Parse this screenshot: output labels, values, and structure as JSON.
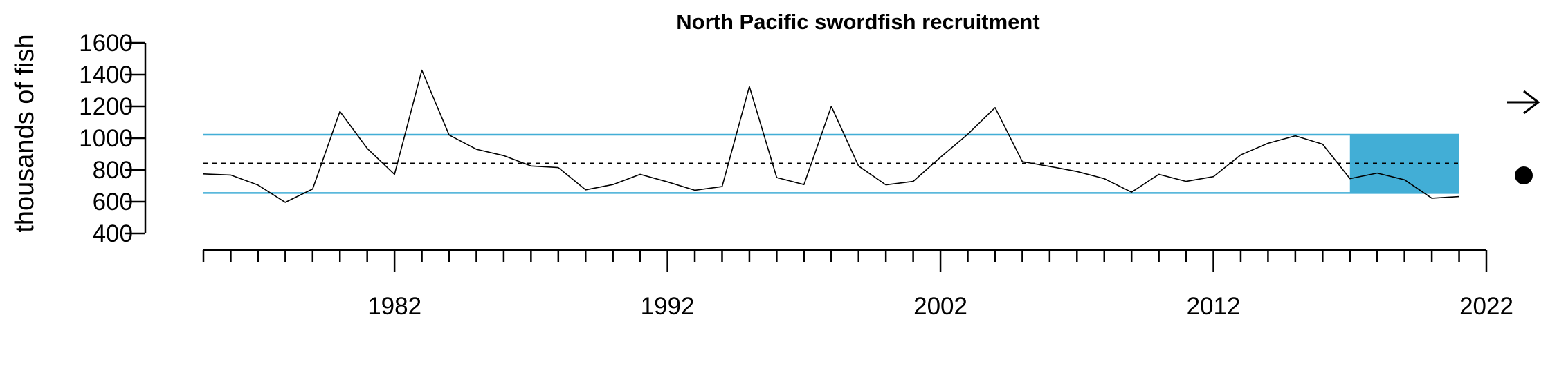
{
  "chart_data": {
    "type": "line",
    "title": "North Pacific swordfish recruitment",
    "ylabel": "thousands of fish",
    "xlabel": "",
    "xlim": [
      1975,
      2022
    ],
    "ylim": [
      400,
      1600
    ],
    "y_ticks": [
      400,
      600,
      800,
      1000,
      1200,
      1400,
      1600
    ],
    "x_tick_labels": [
      1982,
      1992,
      2002,
      2012,
      2022
    ],
    "x_minor_ticks": {
      "start": 1975,
      "end": 2022,
      "step": 1
    },
    "grid": false,
    "colors": {
      "line": "#000000",
      "band": "#42AED6",
      "mean": "#000000",
      "symbols": "#000000"
    },
    "series": [
      {
        "x": [
          1975,
          1976,
          1977,
          1978,
          1979,
          1980,
          1981,
          1982,
          1983,
          1984,
          1985,
          1986,
          1987,
          1988,
          1989,
          1990,
          1991,
          1992,
          1993,
          1994,
          1995,
          1996,
          1997,
          1998,
          1999,
          2000,
          2001,
          2002,
          2003,
          2004,
          2005,
          2006,
          2007,
          2008,
          2009,
          2010,
          2011,
          2012,
          2013,
          2014,
          2015,
          2016,
          2017,
          2018,
          2019,
          2020,
          2021
        ],
        "values": [
          775,
          768,
          705,
          596,
          680,
          1168,
          935,
          772,
          1428,
          1020,
          930,
          890,
          825,
          815,
          675,
          708,
          772,
          725,
          672,
          695,
          1325,
          752,
          708,
          1200,
          825,
          706,
          728,
          880,
          1025,
          1192,
          852,
          822,
          790,
          745,
          660,
          772,
          728,
          758,
          895,
          968,
          1015,
          962,
          745,
          780,
          738,
          622,
          632
        ]
      }
    ],
    "mean_line": 840,
    "sd_band": {
      "lower": 655,
      "upper": 1022
    },
    "recent_window": {
      "start": 2017,
      "end": 2021
    },
    "trend_symbol": "right-arrow-icon",
    "status_symbol": "filled-circle-icon"
  }
}
